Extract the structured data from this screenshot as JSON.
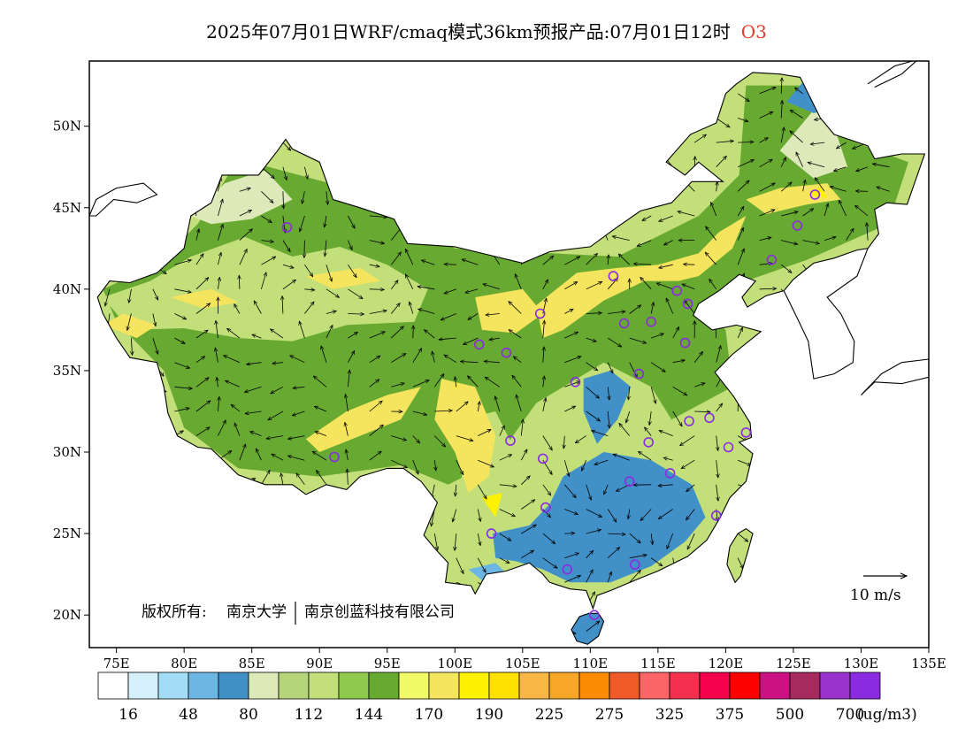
{
  "title": {
    "main": "2025年07月01日WRF/cmaq模式36km预报产品:07月01日12时",
    "species": "O3"
  },
  "colors": {
    "species": "#e23a2c",
    "station_marker": "#8a2be2"
  },
  "axes": {
    "lon_labels": [
      "75E",
      "80E",
      "85E",
      "90E",
      "95E",
      "100E",
      "105E",
      "110E",
      "115E",
      "120E",
      "125E",
      "130E",
      "135E"
    ],
    "lat_labels": [
      "50N",
      "45N",
      "40N",
      "35N",
      "30N",
      "25N",
      "20N"
    ],
    "lon_range": [
      73,
      135
    ],
    "lat_range": [
      18,
      54
    ]
  },
  "copyright": {
    "label": "版权所有:",
    "org1": "南京大学",
    "org2": "南京创蓝科技有限公司"
  },
  "wind_legend": {
    "label": "10 m/s"
  },
  "colorbar": {
    "colors": [
      "#ffffff",
      "#d6f0fb",
      "#a3dcf5",
      "#6cb6e3",
      "#4191c8",
      "#dde9b8",
      "#b6d47a",
      "#c2df7a",
      "#8fca4d",
      "#67a931",
      "#f1fb6a",
      "#f5e45e",
      "#fff200",
      "#ffe100",
      "#f8b745",
      "#f8a628",
      "#fb8b00",
      "#f05a28",
      "#fc6567",
      "#f5304f",
      "#f4004b",
      "#fd0000",
      "#cc1283",
      "#a52a5e",
      "#9932cc",
      "#8a2be2"
    ],
    "tick_labels": [
      "16",
      "48",
      "80",
      "112",
      "144",
      "170",
      "190",
      "225",
      "275",
      "325",
      "375",
      "500",
      "700"
    ],
    "unit": "(ug/m3)"
  },
  "stations": [
    {
      "lon": 87.6,
      "lat": 43.8
    },
    {
      "lon": 91.1,
      "lat": 29.7
    },
    {
      "lon": 101.8,
      "lat": 36.6
    },
    {
      "lon": 103.8,
      "lat": 36.1
    },
    {
      "lon": 106.3,
      "lat": 38.5
    },
    {
      "lon": 111.7,
      "lat": 40.8
    },
    {
      "lon": 116.4,
      "lat": 39.9
    },
    {
      "lon": 117.2,
      "lat": 39.1
    },
    {
      "lon": 114.5,
      "lat": 38.0
    },
    {
      "lon": 112.5,
      "lat": 37.9
    },
    {
      "lon": 117.0,
      "lat": 36.7
    },
    {
      "lon": 113.6,
      "lat": 34.8
    },
    {
      "lon": 108.9,
      "lat": 34.3
    },
    {
      "lon": 104.1,
      "lat": 30.7
    },
    {
      "lon": 106.5,
      "lat": 29.6
    },
    {
      "lon": 106.7,
      "lat": 26.6
    },
    {
      "lon": 102.7,
      "lat": 25.0
    },
    {
      "lon": 108.3,
      "lat": 22.8
    },
    {
      "lon": 113.3,
      "lat": 23.1
    },
    {
      "lon": 110.3,
      "lat": 20.0
    },
    {
      "lon": 112.9,
      "lat": 28.2
    },
    {
      "lon": 114.3,
      "lat": 30.6
    },
    {
      "lon": 115.9,
      "lat": 28.7
    },
    {
      "lon": 117.3,
      "lat": 31.9
    },
    {
      "lon": 118.8,
      "lat": 32.1
    },
    {
      "lon": 120.2,
      "lat": 30.3
    },
    {
      "lon": 121.5,
      "lat": 31.2
    },
    {
      "lon": 119.3,
      "lat": 26.1
    },
    {
      "lon": 123.4,
      "lat": 41.8
    },
    {
      "lon": 125.3,
      "lat": 43.9
    },
    {
      "lon": 126.6,
      "lat": 45.8
    }
  ],
  "china_outline": [
    [
      73.6,
      39.5
    ],
    [
      74.5,
      40.5
    ],
    [
      76.0,
      40.4
    ],
    [
      78.0,
      41.0
    ],
    [
      80.0,
      42.5
    ],
    [
      80.5,
      44.5
    ],
    [
      82.0,
      45.3
    ],
    [
      82.8,
      47.0
    ],
    [
      85.5,
      47.0
    ],
    [
      86.9,
      48.5
    ],
    [
      87.5,
      49.2
    ],
    [
      88.0,
      48.6
    ],
    [
      90.0,
      47.8
    ],
    [
      91.0,
      45.5
    ],
    [
      93.0,
      45.0
    ],
    [
      95.5,
      44.3
    ],
    [
      96.5,
      42.8
    ],
    [
      100.0,
      42.6
    ],
    [
      105.0,
      41.6
    ],
    [
      107.0,
      42.3
    ],
    [
      110.0,
      42.6
    ],
    [
      111.8,
      43.7
    ],
    [
      113.7,
      44.8
    ],
    [
      116.0,
      45.3
    ],
    [
      117.5,
      46.6
    ],
    [
      119.8,
      46.6
    ],
    [
      118.0,
      47.8
    ],
    [
      117.0,
      47.0
    ],
    [
      115.6,
      47.8
    ],
    [
      117.4,
      49.5
    ],
    [
      119.3,
      50.2
    ],
    [
      120.0,
      52.0
    ],
    [
      120.8,
      52.6
    ],
    [
      122.0,
      53.3
    ],
    [
      124.0,
      53.2
    ],
    [
      125.5,
      53.0
    ],
    [
      127.0,
      50.5
    ],
    [
      128.0,
      49.5
    ],
    [
      130.5,
      48.8
    ],
    [
      131.0,
      48.0
    ],
    [
      133.0,
      48.3
    ],
    [
      134.7,
      48.3
    ],
    [
      133.4,
      45.2
    ],
    [
      131.9,
      45.3
    ],
    [
      131.0,
      44.9
    ],
    [
      131.3,
      43.4
    ],
    [
      130.5,
      42.5
    ],
    [
      129.7,
      42.4
    ],
    [
      128.0,
      41.9
    ],
    [
      126.5,
      41.6
    ],
    [
      125.0,
      40.6
    ],
    [
      124.3,
      39.9
    ],
    [
      123.0,
      39.6
    ],
    [
      121.6,
      38.9
    ],
    [
      121.2,
      39.5
    ],
    [
      122.2,
      40.5
    ],
    [
      121.0,
      40.9
    ],
    [
      119.5,
      39.9
    ],
    [
      118.0,
      39.1
    ],
    [
      117.6,
      38.4
    ],
    [
      119.0,
      37.5
    ],
    [
      120.8,
      37.8
    ],
    [
      122.6,
      37.4
    ],
    [
      120.5,
      36.0
    ],
    [
      119.2,
      34.9
    ],
    [
      120.6,
      33.4
    ],
    [
      121.8,
      31.8
    ],
    [
      121.9,
      30.9
    ],
    [
      121.0,
      30.6
    ],
    [
      122.0,
      29.9
    ],
    [
      121.5,
      28.2
    ],
    [
      120.3,
      27.2
    ],
    [
      119.6,
      26.0
    ],
    [
      118.6,
      24.6
    ],
    [
      117.2,
      23.6
    ],
    [
      115.0,
      22.7
    ],
    [
      113.5,
      22.2
    ],
    [
      111.5,
      21.5
    ],
    [
      110.5,
      21.2
    ],
    [
      110.2,
      20.4
    ],
    [
      109.7,
      21.5
    ],
    [
      108.5,
      21.6
    ],
    [
      107.0,
      22.0
    ],
    [
      106.5,
      22.5
    ],
    [
      105.5,
      23.2
    ],
    [
      103.8,
      22.7
    ],
    [
      102.3,
      22.5
    ],
    [
      101.5,
      21.3
    ],
    [
      101.2,
      21.8
    ],
    [
      99.3,
      22.0
    ],
    [
      99.5,
      23.2
    ],
    [
      98.5,
      24.1
    ],
    [
      97.7,
      24.9
    ],
    [
      98.7,
      26.9
    ],
    [
      97.5,
      28.2
    ],
    [
      96.2,
      29.0
    ],
    [
      95.0,
      29.0
    ],
    [
      93.0,
      28.5
    ],
    [
      92.0,
      27.7
    ],
    [
      90.5,
      28.0
    ],
    [
      89.0,
      27.4
    ],
    [
      88.0,
      28.0
    ],
    [
      86.0,
      28.0
    ],
    [
      84.0,
      28.6
    ],
    [
      82.0,
      30.2
    ],
    [
      81.0,
      30.3
    ],
    [
      79.5,
      31.0
    ],
    [
      78.8,
      32.4
    ],
    [
      78.5,
      34.0
    ],
    [
      78.0,
      35.5
    ],
    [
      76.0,
      35.8
    ],
    [
      75.0,
      37.0
    ],
    [
      74.0,
      38.5
    ],
    [
      73.6,
      39.5
    ]
  ],
  "hainan_outline": [
    [
      108.6,
      19.1
    ],
    [
      109.0,
      18.4
    ],
    [
      109.8,
      18.2
    ],
    [
      110.6,
      18.7
    ],
    [
      111.0,
      19.6
    ],
    [
      110.6,
      20.1
    ],
    [
      109.9,
      20.1
    ],
    [
      109.2,
      19.9
    ],
    [
      108.6,
      19.1
    ]
  ],
  "taiwan_outline": [
    [
      120.1,
      23.1
    ],
    [
      120.7,
      22.0
    ],
    [
      121.1,
      22.4
    ],
    [
      121.6,
      23.8
    ],
    [
      122.0,
      25.0
    ],
    [
      121.5,
      25.3
    ],
    [
      120.9,
      25.0
    ],
    [
      120.3,
      24.2
    ],
    [
      120.1,
      23.1
    ]
  ],
  "korea_outline": [
    [
      124.3,
      39.9
    ],
    [
      125.3,
      38.2
    ],
    [
      126.1,
      36.8
    ],
    [
      126.5,
      34.5
    ],
    [
      128.0,
      34.8
    ],
    [
      129.4,
      35.5
    ],
    [
      129.5,
      36.8
    ],
    [
      128.5,
      38.5
    ],
    [
      127.5,
      39.5
    ],
    [
      129.7,
      40.8
    ],
    [
      130.5,
      42.5
    ]
  ],
  "japan_outline": [
    [
      130.0,
      33.5
    ],
    [
      131.0,
      34.3
    ],
    [
      133.0,
      34.2
    ],
    [
      135.0,
      34.6
    ],
    [
      135.0,
      35.7
    ],
    [
      133.0,
      35.5
    ],
    [
      131.5,
      34.8
    ],
    [
      130.0,
      33.5
    ]
  ],
  "kazakh_coast": [
    [
      73.0,
      44.5
    ],
    [
      73.5,
      45.5
    ],
    [
      75.0,
      46.2
    ],
    [
      77.0,
      46.5
    ],
    [
      78.0,
      45.8
    ],
    [
      76.5,
      45.3
    ],
    [
      74.8,
      45.5
    ],
    [
      73.5,
      44.5
    ]
  ],
  "sakhalin_coast": [
    [
      130.5,
      52.6
    ],
    [
      132.5,
      53.7
    ],
    [
      134.2,
      54.1
    ],
    [
      133.0,
      53.2
    ],
    [
      131.0,
      52.4
    ]
  ],
  "ozone_patches": [
    {
      "level": 9,
      "pts": [
        [
          84.0,
          48.0
        ],
        [
          93.0,
          46.0
        ],
        [
          100.0,
          42.5
        ],
        [
          112.0,
          42.0
        ],
        [
          118.0,
          44.5
        ],
        [
          121.0,
          47.0
        ],
        [
          121.5,
          52.5
        ],
        [
          126.0,
          52.5
        ],
        [
          128.0,
          49.5
        ],
        [
          133.5,
          47.8
        ],
        [
          132.0,
          44.0
        ],
        [
          126.0,
          41.8
        ],
        [
          121.5,
          40.5
        ],
        [
          118.0,
          39.0
        ],
        [
          120.0,
          37.5
        ],
        [
          120.5,
          34.0
        ],
        [
          116.0,
          32.0
        ],
        [
          114.5,
          34.0
        ],
        [
          111.0,
          35.5
        ],
        [
          106.0,
          33.0
        ],
        [
          103.0,
          29.5
        ],
        [
          99.5,
          28.0
        ],
        [
          96.0,
          29.2
        ],
        [
          90.0,
          28.5
        ],
        [
          84.0,
          29.0
        ],
        [
          80.0,
          31.5
        ],
        [
          78.5,
          35.0
        ],
        [
          75.0,
          38.0
        ],
        [
          74.0,
          40.0
        ],
        [
          78.0,
          41.5
        ],
        [
          81.0,
          44.0
        ]
      ]
    },
    {
      "level": 7,
      "pts": [
        [
          74.0,
          39.5
        ],
        [
          77.5,
          40.5
        ],
        [
          80.5,
          42.0
        ],
        [
          84.5,
          43.2
        ],
        [
          88.0,
          42.0
        ],
        [
          91.5,
          42.6
        ],
        [
          95.0,
          41.5
        ],
        [
          98.0,
          40.0
        ],
        [
          97.0,
          38.0
        ],
        [
          92.0,
          37.8
        ],
        [
          88.0,
          36.8
        ],
        [
          84.0,
          37.0
        ],
        [
          80.0,
          37.6
        ],
        [
          76.0,
          37.5
        ]
      ]
    },
    {
      "level": 7,
      "pts": [
        [
          100.5,
          32.0
        ],
        [
          103.0,
          32.5
        ],
        [
          104.5,
          30.0
        ],
        [
          103.5,
          28.0
        ],
        [
          102.0,
          26.5
        ],
        [
          100.5,
          27.5
        ]
      ]
    },
    {
      "level": 5,
      "pts": [
        [
          80.5,
          44.5
        ],
        [
          83.0,
          46.5
        ],
        [
          86.0,
          47.3
        ],
        [
          88.0,
          45.5
        ],
        [
          85.0,
          44.3
        ],
        [
          82.0,
          44.0
        ]
      ]
    },
    {
      "level": 5,
      "pts": [
        [
          124.0,
          48.5
        ],
        [
          126.5,
          51.0
        ],
        [
          128.0,
          50.0
        ],
        [
          129.0,
          47.5
        ],
        [
          126.5,
          46.8
        ]
      ]
    },
    {
      "level": 4,
      "pts": [
        [
          124.5,
          51.5
        ],
        [
          126.0,
          53.0
        ],
        [
          128.0,
          52.3
        ],
        [
          128.5,
          51.2
        ],
        [
          126.5,
          50.8
        ]
      ]
    },
    {
      "level": 4,
      "pts": [
        [
          109.5,
          34.5
        ],
        [
          111.5,
          35.0
        ],
        [
          113.0,
          34.0
        ],
        [
          112.0,
          32.0
        ],
        [
          110.5,
          30.5
        ],
        [
          109.5,
          32.5
        ]
      ]
    },
    {
      "level": 4,
      "pts": [
        [
          108.0,
          28.5
        ],
        [
          111.0,
          30.0
        ],
        [
          114.5,
          29.5
        ],
        [
          117.5,
          28.0
        ],
        [
          118.5,
          26.0
        ],
        [
          117.0,
          24.5
        ],
        [
          114.5,
          23.0
        ],
        [
          111.5,
          22.0
        ],
        [
          108.5,
          22.0
        ],
        [
          106.5,
          22.8
        ],
        [
          104.5,
          23.3
        ],
        [
          103.0,
          23.5
        ],
        [
          102.8,
          25.0
        ],
        [
          105.5,
          25.5
        ],
        [
          107.0,
          26.8
        ]
      ]
    },
    {
      "level": 3,
      "pts": [
        [
          101.0,
          22.8
        ],
        [
          103.0,
          23.2
        ],
        [
          104.0,
          22.4
        ],
        [
          102.5,
          21.8
        ]
      ]
    },
    {
      "level": 4,
      "pts": [
        [
          108.8,
          18.7
        ],
        [
          110.2,
          18.4
        ],
        [
          110.9,
          19.5
        ],
        [
          110.0,
          19.9
        ],
        [
          109.0,
          19.5
        ]
      ]
    },
    {
      "level": 11,
      "pts": [
        [
          79.0,
          39.5
        ],
        [
          82.0,
          40.0
        ],
        [
          84.0,
          39.2
        ],
        [
          81.5,
          38.8
        ]
      ]
    },
    {
      "level": 11,
      "pts": [
        [
          74.0,
          37.8
        ],
        [
          75.5,
          38.5
        ],
        [
          78.0,
          37.8
        ],
        [
          76.5,
          37.0
        ]
      ]
    },
    {
      "level": 11,
      "pts": [
        [
          89.0,
          40.8
        ],
        [
          93.0,
          41.3
        ],
        [
          94.5,
          40.5
        ],
        [
          91.0,
          40.0
        ]
      ]
    },
    {
      "level": 11,
      "pts": [
        [
          101.5,
          39.5
        ],
        [
          105.0,
          40.0
        ],
        [
          106.5,
          38.5
        ],
        [
          104.5,
          37.3
        ],
        [
          102.0,
          37.5
        ]
      ]
    },
    {
      "level": 11,
      "pts": [
        [
          106.0,
          39.0
        ],
        [
          109.0,
          41.0
        ],
        [
          112.0,
          41.3
        ],
        [
          115.0,
          41.5
        ],
        [
          118.0,
          42.2
        ],
        [
          119.5,
          43.5
        ],
        [
          121.5,
          44.5
        ],
        [
          120.5,
          42.5
        ],
        [
          118.0,
          40.8
        ],
        [
          116.5,
          40.5
        ],
        [
          114.0,
          40.5
        ],
        [
          111.0,
          39.3
        ],
        [
          108.0,
          37.5
        ],
        [
          106.5,
          37.0
        ]
      ]
    },
    {
      "level": 11,
      "pts": [
        [
          121.5,
          45.5
        ],
        [
          124.0,
          46.2
        ],
        [
          127.5,
          46.5
        ],
        [
          128.5,
          45.5
        ],
        [
          126.0,
          45.2
        ],
        [
          123.0,
          44.6
        ]
      ]
    },
    {
      "level": 11,
      "pts": [
        [
          99.0,
          34.5
        ],
        [
          101.5,
          34.0
        ],
        [
          103.0,
          31.0
        ],
        [
          102.5,
          28.5
        ],
        [
          101.0,
          27.5
        ],
        [
          100.0,
          30.0
        ],
        [
          98.5,
          32.0
        ]
      ]
    },
    {
      "level": 11,
      "pts": [
        [
          89.0,
          30.8
        ],
        [
          92.0,
          32.5
        ],
        [
          95.0,
          33.5
        ],
        [
          97.5,
          34.0
        ],
        [
          96.0,
          32.0
        ],
        [
          93.0,
          31.0
        ],
        [
          90.0,
          30.0
        ]
      ]
    },
    {
      "level": 12,
      "pts": [
        [
          102.0,
          27.2
        ],
        [
          103.5,
          27.5
        ],
        [
          103.0,
          26.0
        ]
      ]
    },
    {
      "level": 12,
      "pts": [
        [
          126.0,
          45.8
        ],
        [
          127.0,
          46.3
        ],
        [
          127.5,
          45.6
        ]
      ]
    }
  ],
  "wind_field": {
    "lon_start": 74.5,
    "lon_end": 133.5,
    "lon_step": 1.6,
    "lat_start": 19.0,
    "lat_end": 53.0,
    "lat_step": 1.5
  }
}
